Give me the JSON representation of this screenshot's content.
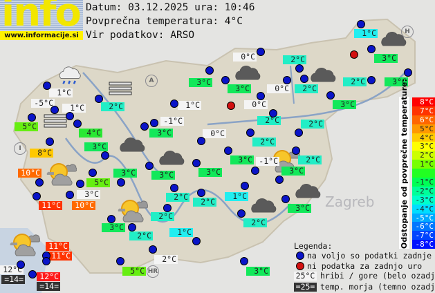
{
  "logo": {
    "text": "info",
    "url": "www.informacije.si"
  },
  "header": {
    "date_line": "Datum: 03.12.2025 ura: 10:46",
    "avg_temp_line": "Povprečna temperatura: 4°C",
    "source_line": "Vir podatkov: ARSO"
  },
  "colors": {
    "white": "#f4f4f4",
    "green": "#12e85a",
    "green4": "#2ae834",
    "lime": "#66ee11",
    "aqua": "#22eec6",
    "cyan": "#22eef0",
    "yellow": "#ffc800",
    "orange": "#ff6a00",
    "red": "#ff3300",
    "red12": "#ff1a1a",
    "dark": "#333333",
    "dot_available": "#0a14c8",
    "dot_missing": "#d21010"
  },
  "stations": [
    {
      "temp": "1°C",
      "style": "cyan"
    },
    {
      "temp": "3°C",
      "style": "green"
    },
    {
      "temp": "3°C",
      "style": "green"
    },
    {
      "temp": "2°C",
      "style": "aqua"
    },
    {
      "temp": "2°C",
      "style": "aqua"
    },
    {
      "temp": "2°C",
      "style": "aqua"
    },
    {
      "temp": "0°C",
      "style": "white"
    },
    {
      "temp": "3°C",
      "style": "green"
    },
    {
      "temp": "0°C",
      "style": "white"
    },
    {
      "temp": "3°C",
      "style": "green"
    },
    {
      "temp": "0°C",
      "style": "white"
    },
    {
      "temp": "3°C",
      "style": "green"
    },
    {
      "temp": "1°C",
      "style": "white"
    },
    {
      "temp": "-1°C",
      "style": "white"
    },
    {
      "temp": "3°C",
      "style": "green"
    },
    {
      "temp": "0°C",
      "style": "white"
    },
    {
      "temp": "1°C",
      "style": "white"
    },
    {
      "temp": "-5°C",
      "style": "white"
    },
    {
      "temp": "1°C",
      "style": "white"
    },
    {
      "temp": "2°C",
      "style": "aqua"
    },
    {
      "temp": "5°C",
      "style": "lime"
    },
    {
      "temp": "4°C",
      "style": "green4"
    },
    {
      "temp": "3°C",
      "style": "green"
    },
    {
      "temp": "8°C",
      "style": "yellow"
    },
    {
      "temp": "10°C",
      "style": "orange"
    },
    {
      "temp": "5°C",
      "style": "lime"
    },
    {
      "temp": "3°C",
      "style": "white"
    },
    {
      "temp": "11°C",
      "style": "red"
    },
    {
      "temp": "10°C",
      "style": "orange"
    },
    {
      "temp": "3°C",
      "style": "green"
    },
    {
      "temp": "3°C",
      "style": "green"
    },
    {
      "temp": "3°C",
      "style": "green"
    },
    {
      "temp": "2°C",
      "style": "aqua"
    },
    {
      "temp": "2°C",
      "style": "aqua"
    },
    {
      "temp": "2°C",
      "style": "aqua"
    },
    {
      "temp": "3°C",
      "style": "green"
    },
    {
      "temp": "2°C",
      "style": "aqua"
    },
    {
      "temp": "1°C",
      "style": "cyan"
    },
    {
      "temp": "2°C",
      "style": "aqua"
    },
    {
      "temp": "2°C",
      "style": "aqua"
    },
    {
      "temp": "2°C",
      "style": "aqua"
    },
    {
      "temp": "3°C",
      "style": "green"
    },
    {
      "temp": "-1°C",
      "style": "white"
    },
    {
      "temp": "2°C",
      "style": "aqua"
    },
    {
      "temp": "3°C",
      "style": "green"
    },
    {
      "temp": "1°C",
      "style": "cyan"
    },
    {
      "temp": "3°C",
      "style": "green"
    },
    {
      "temp": "2°C",
      "style": "aqua"
    },
    {
      "temp": "2°C",
      "style": "white"
    },
    {
      "temp": "5°C",
      "style": "lime"
    },
    {
      "temp": "3°C",
      "style": "green"
    },
    {
      "temp": "11°C",
      "style": "red"
    },
    {
      "temp": "11°C",
      "style": "red"
    },
    {
      "temp": "12°C",
      "style": "white"
    },
    {
      "temp": "=14=",
      "style": "dark"
    },
    {
      "temp": "12°C",
      "style": "red12"
    },
    {
      "temp": "=14=",
      "style": "dark"
    }
  ],
  "weather_icons": [
    "cloud",
    "cloud",
    "cloud",
    "rain-cloud",
    "fog",
    "fog",
    "cloud",
    "cloud",
    "sun-cloud",
    "sun-cloud",
    "sun-cloud",
    "cloud",
    "cloud",
    "sun-cloud"
  ],
  "map_labels": {
    "zagreb": "Zagreb",
    "austria": "A",
    "hungary": "H",
    "croatia": "HR",
    "italy": "I"
  },
  "scale": {
    "title": "Odstopanje od povprečne temperature:",
    "steps": [
      {
        "label": "8°C",
        "color": "#ff0000"
      },
      {
        "label": "7°C",
        "color": "#ff3300"
      },
      {
        "label": "6°C",
        "color": "#ff6600"
      },
      {
        "label": "5°C",
        "color": "#ff9900"
      },
      {
        "label": "4°C",
        "color": "#ffcc00"
      },
      {
        "label": "3°C",
        "color": "#ffff00"
      },
      {
        "label": "2°C",
        "color": "#ccff00"
      },
      {
        "label": "1°C",
        "color": "#77ff00"
      },
      {
        "label": "",
        "color": "#22ff22"
      },
      {
        "label": "-1°C",
        "color": "#00ff55"
      },
      {
        "label": "-2°C",
        "color": "#00ff99"
      },
      {
        "label": "-3°C",
        "color": "#00ffcc"
      },
      {
        "label": "-4°C",
        "color": "#00ddff"
      },
      {
        "label": "-5°C",
        "color": "#00aaff"
      },
      {
        "label": "-6°C",
        "color": "#0077ff"
      },
      {
        "label": "-7°C",
        "color": "#0044ff"
      },
      {
        "label": "-8°C",
        "color": "#0011ff"
      }
    ]
  },
  "legend": {
    "title": "Legenda:",
    "available": "na voljo so podatki zadnje ure",
    "missing": "ni podatka za zadnjo uro",
    "mountain_sample": "25°C",
    "mountain_text": "hribi / gore (belo ozadje)",
    "sea_sample": "=25=",
    "sea_text": "temp. morja (temno ozadje)"
  }
}
